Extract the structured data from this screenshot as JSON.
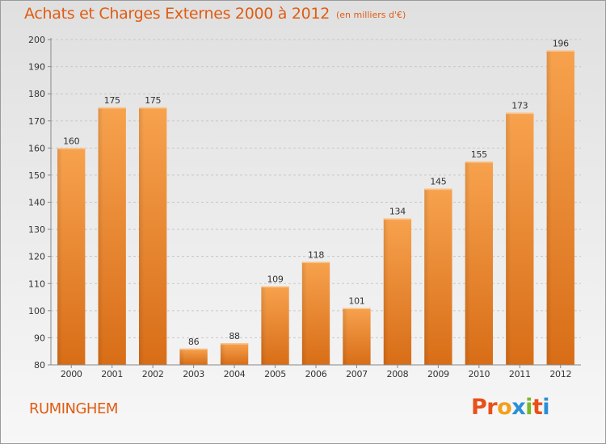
{
  "chart": {
    "title": "Achats et Charges Externes 2000 à 2012",
    "subtitle": "(en milliers d'€)",
    "commune": "RUMINGHEM",
    "logo": "Proxiti",
    "bar_color": "#f08a2c",
    "title_color": "#e05c12"
  },
  "logo_colors": [
    "#e8501a",
    "#e8501a",
    "#f2a01c",
    "#2a8fd6",
    "#7ab827",
    "#e8501a",
    "#2a8fd6"
  ],
  "chart_data": {
    "type": "bar",
    "categories": [
      "2000",
      "2001",
      "2002",
      "2003",
      "2004",
      "2005",
      "2006",
      "2007",
      "2008",
      "2009",
      "2010",
      "2011",
      "2012"
    ],
    "values": [
      160,
      175,
      175,
      86,
      88,
      109,
      118,
      101,
      134,
      145,
      155,
      173,
      196
    ],
    "title": "Achats et Charges Externes 2000 à 2012",
    "subtitle": "(en milliers d'€)",
    "xlabel": "",
    "ylabel": "",
    "ylim": [
      80,
      200
    ],
    "yticks": [
      80,
      90,
      100,
      110,
      120,
      130,
      140,
      150,
      160,
      170,
      180,
      190,
      200
    ],
    "grid": true
  }
}
